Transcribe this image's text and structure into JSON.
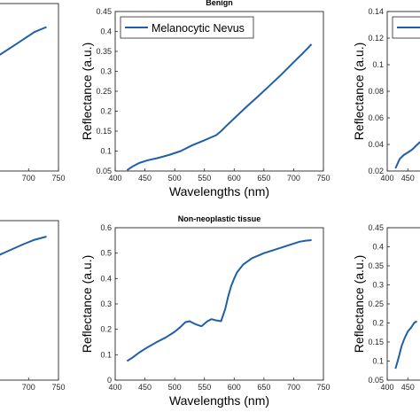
{
  "colors": {
    "line": "#1f5fa8",
    "axis": "#262626"
  },
  "chart_data": [
    {
      "id": "left-top",
      "type": "line",
      "title": "",
      "xlabel": "",
      "ylabel": "",
      "xlim": [
        400,
        750
      ],
      "ylim": [
        0,
        1
      ],
      "xticks": [
        700,
        750
      ],
      "yticks": [],
      "x": [
        420,
        440,
        470,
        500,
        530,
        560,
        590,
        620,
        650,
        680,
        710,
        730
      ],
      "y": [
        0.1,
        0.16,
        0.24,
        0.31,
        0.38,
        0.45,
        0.53,
        0.61,
        0.69,
        0.76,
        0.83,
        0.86
      ]
    },
    {
      "id": "benign",
      "type": "line",
      "title": "Benign",
      "xlabel": "Wavelengths (nm)",
      "ylabel": "Reflectance (a.u.)",
      "xlim": [
        400,
        750
      ],
      "ylim": [
        0.05,
        0.45
      ],
      "xticks": [
        400,
        450,
        500,
        550,
        600,
        650,
        700,
        750
      ],
      "yticks": [
        0.05,
        0.1,
        0.15,
        0.2,
        0.25,
        0.3,
        0.35,
        0.4,
        0.45
      ],
      "legend": {
        "entries": [
          "Melanocytic Nevus"
        ],
        "placement": "top-left"
      },
      "x": [
        420,
        430,
        440,
        455,
        470,
        490,
        510,
        530,
        550,
        570,
        578,
        586,
        600,
        620,
        640,
        660,
        680,
        700,
        715,
        730
      ],
      "y": [
        0.052,
        0.062,
        0.07,
        0.077,
        0.082,
        0.09,
        0.1,
        0.115,
        0.127,
        0.14,
        0.15,
        0.162,
        0.182,
        0.21,
        0.237,
        0.265,
        0.293,
        0.323,
        0.345,
        0.368
      ]
    },
    {
      "id": "right-top",
      "type": "line",
      "title": "",
      "xlabel": "",
      "ylabel": "Reflectance (a.u.)",
      "xlim": [
        400,
        750
      ],
      "ylim": [
        0.02,
        0.14
      ],
      "xticks": [
        400,
        450
      ],
      "yticks": [
        0.02,
        0.04,
        0.06,
        0.08,
        0.1,
        0.12,
        0.14
      ],
      "x": [
        420,
        430,
        440,
        450,
        460,
        470,
        480
      ],
      "y": [
        0.022,
        0.029,
        0.032,
        0.034,
        0.036,
        0.039,
        0.042
      ]
    },
    {
      "id": "left-bottom",
      "type": "line",
      "title": "",
      "xlabel": "",
      "ylabel": "",
      "xlim": [
        400,
        750
      ],
      "ylim": [
        0,
        1
      ],
      "xticks": [
        700,
        750
      ],
      "yticks": [],
      "x": [
        420,
        450,
        480,
        510,
        540,
        570,
        600,
        630,
        660,
        690,
        710,
        730
      ],
      "y": [
        0.2,
        0.3,
        0.39,
        0.47,
        0.55,
        0.62,
        0.69,
        0.75,
        0.8,
        0.85,
        0.88,
        0.9
      ]
    },
    {
      "id": "non-neoplastic",
      "type": "line",
      "title": "Non-neoplastic tissue",
      "xlabel": "Wavelengths (nm)",
      "ylabel": "Reflectance (a.u.)",
      "xlim": [
        400,
        750
      ],
      "ylim": [
        0,
        0.6
      ],
      "xticks": [
        400,
        450,
        500,
        550,
        600,
        650,
        700,
        750
      ],
      "yticks": [
        0,
        0.1,
        0.2,
        0.3,
        0.4,
        0.5,
        0.6
      ],
      "x": [
        420,
        430,
        440,
        455,
        470,
        485,
        500,
        510,
        518,
        525,
        535,
        545,
        555,
        562,
        570,
        578,
        585,
        590,
        595,
        600,
        605,
        615,
        630,
        650,
        670,
        690,
        710,
        720,
        730
      ],
      "y": [
        0.075,
        0.09,
        0.108,
        0.13,
        0.15,
        0.168,
        0.19,
        0.21,
        0.228,
        0.232,
        0.22,
        0.212,
        0.232,
        0.24,
        0.235,
        0.232,
        0.28,
        0.33,
        0.37,
        0.4,
        0.425,
        0.455,
        0.48,
        0.5,
        0.515,
        0.53,
        0.545,
        0.549,
        0.551
      ]
    },
    {
      "id": "right-bottom",
      "type": "line",
      "title": "",
      "xlabel": "",
      "ylabel": "Reflectance (a.u.)",
      "xlim": [
        400,
        750
      ],
      "ylim": [
        0.05,
        0.45
      ],
      "xticks": [
        400,
        450
      ],
      "yticks": [
        0.05,
        0.1,
        0.15,
        0.2,
        0.25,
        0.3,
        0.35,
        0.4,
        0.45
      ],
      "x": [
        420,
        428,
        435,
        442,
        450,
        458,
        465,
        472
      ],
      "y": [
        0.08,
        0.11,
        0.14,
        0.16,
        0.178,
        0.188,
        0.2,
        0.205
      ]
    }
  ]
}
